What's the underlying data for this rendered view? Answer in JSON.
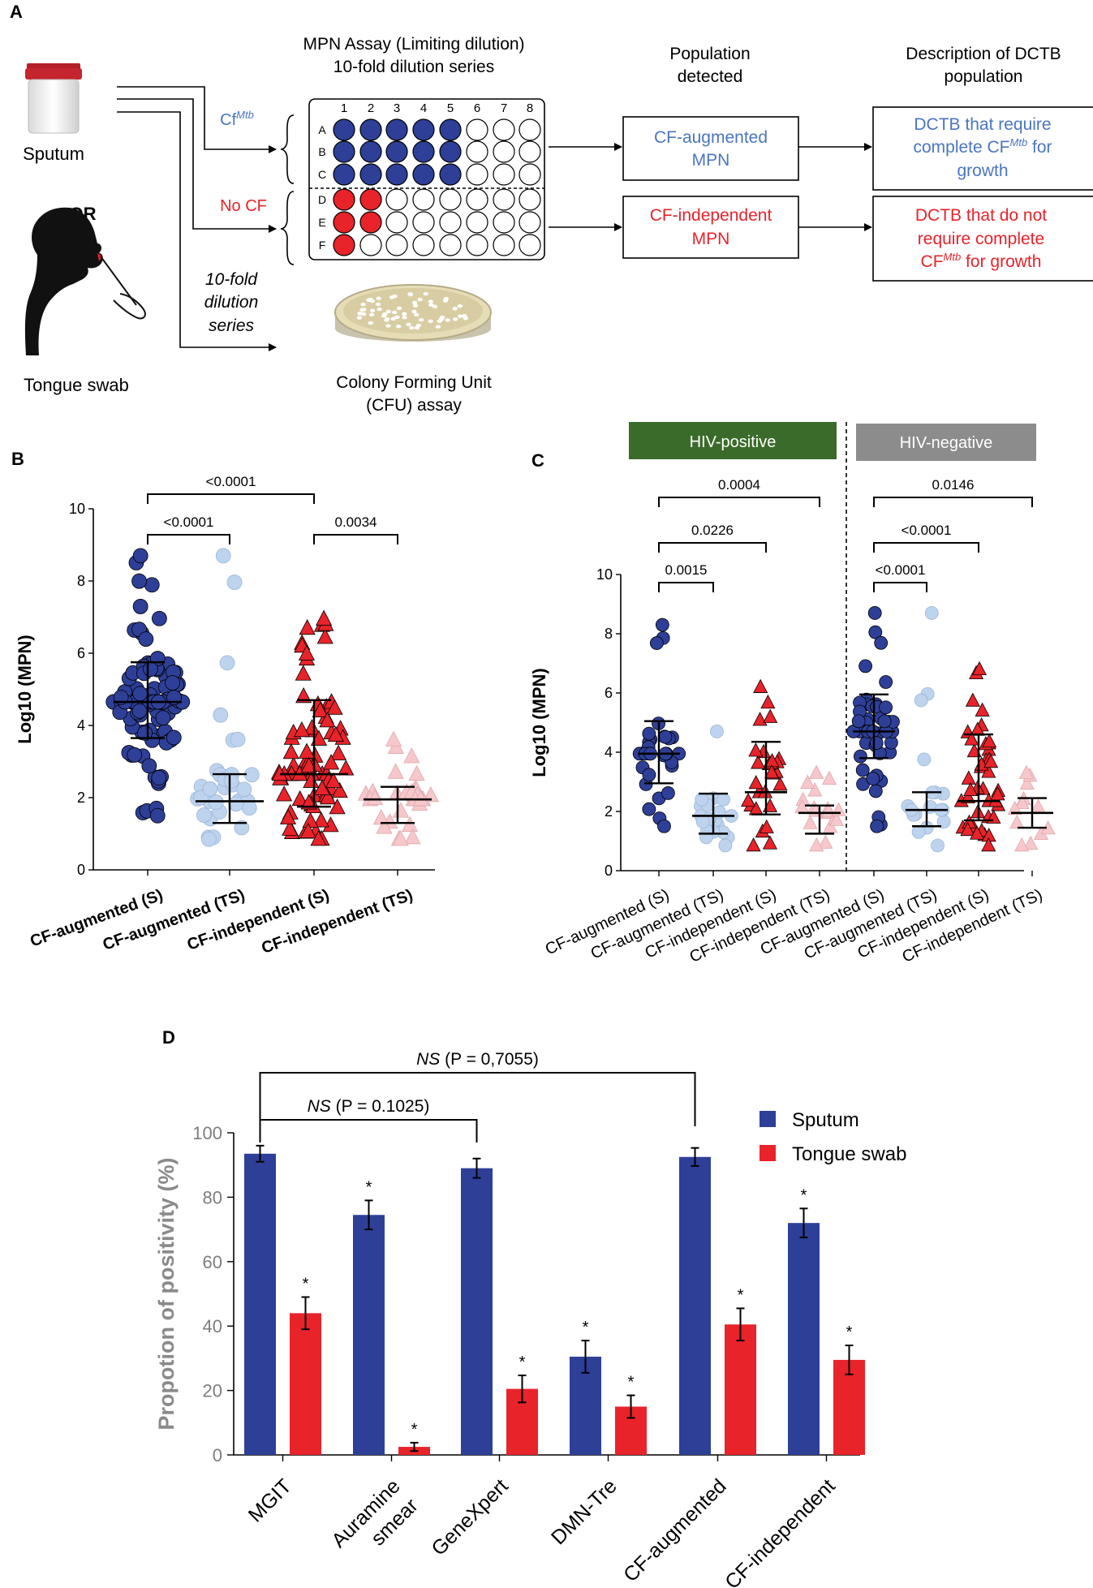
{
  "panels": {
    "a": "A",
    "b": "B",
    "c": "C",
    "d": "D"
  },
  "colors": {
    "blue": "#2E3F98",
    "light_blue": "#BDD3EE",
    "red": "#E8232A",
    "light_red": "#F6C8CB",
    "green": "#3B6B2A",
    "gray": "#8C8C8C",
    "text_blue": "#4A76C0",
    "text_red": "#E8232A"
  },
  "panel_a": {
    "sputum_label": "Sputum",
    "or_label": "OR",
    "tongue_label": "Tongue swab",
    "mpn_title_1": "MPN Assay (Limiting dilution)",
    "mpn_title_2": "10-fold dilution series",
    "pop_title_1": "Population",
    "pop_title_2": "detected",
    "desc_title_1": "Description of DCTB",
    "desc_title_2": "population",
    "cf_label": "Cf",
    "cf_sup": "Mtb",
    "nocf_label": "No CF",
    "dilution_1": "10-fold",
    "dilution_2": "dilution",
    "dilution_3": "series",
    "col_labels": [
      "1",
      "2",
      "3",
      "4",
      "5",
      "6",
      "7",
      "8"
    ],
    "row_labels": [
      "A",
      "B",
      "C",
      "D",
      "E",
      "F"
    ],
    "pos_counts": [
      5,
      5,
      5,
      2,
      2,
      1
    ],
    "box_aug_1": "CF-augmented",
    "box_aug_2": "MPN",
    "box_ind_1": "CF-independent",
    "box_ind_2": "MPN",
    "desc_aug_1": "DCTB that require",
    "desc_aug_2a": "complete CF",
    "desc_aug_2sup": "Mtb",
    "desc_aug_2b": " for",
    "desc_aug_3": "growth",
    "desc_ind_1": "DCTB that do not",
    "desc_ind_2": "require complete",
    "desc_ind_3a": "CF",
    "desc_ind_3sup": "Mtb",
    "desc_ind_3b": " for growth",
    "cfu_1": "Colony Forming Unit",
    "cfu_2": "(CFU) assay"
  },
  "chart_data": [
    {
      "panel": "B",
      "type": "scatter",
      "ylabel": "Log10 (MPN)",
      "ylim": [
        0,
        10
      ],
      "yticks": [
        "0",
        "2",
        "4",
        "6",
        "8",
        "10"
      ],
      "categories": [
        "CF-augmented (S)",
        "CF-augmented (TS)",
        "CF-independent (S)",
        "CF-independent (TS)"
      ],
      "series": [
        {
          "name": "CF-augmented (S)",
          "marker": "circle",
          "median": 4.65,
          "q1": 3.65,
          "q3": 5.75,
          "min": 1.5,
          "max": 8.7,
          "n": 90
        },
        {
          "name": "CF-augmented (TS)",
          "marker": "circle",
          "median": 1.9,
          "q1": 1.3,
          "q3": 2.65,
          "min": 0.85,
          "max": 8.7,
          "n": 30
        },
        {
          "name": "CF-independent (S)",
          "marker": "triangle",
          "median": 2.65,
          "q1": 1.75,
          "q3": 4.7,
          "min": 0.85,
          "max": 6.95,
          "n": 80
        },
        {
          "name": "CF-independent (TS)",
          "marker": "triangle",
          "median": 1.95,
          "q1": 1.3,
          "q3": 2.3,
          "min": 0.85,
          "max": 3.6,
          "n": 32
        }
      ],
      "comparisons": [
        {
          "from": 0,
          "to": 2,
          "p": "<0.0001"
        },
        {
          "from": 0,
          "to": 1,
          "p": "<0.0001"
        },
        {
          "from": 2,
          "to": 3,
          "p": "0.0034"
        }
      ]
    },
    {
      "panel": "C",
      "type": "scatter",
      "ylabel": "Log10 (MPN)",
      "ylim": [
        0,
        10
      ],
      "yticks": [
        "0",
        "2",
        "4",
        "6",
        "8",
        "10"
      ],
      "groups": [
        "HIV-positive",
        "HIV-negative"
      ],
      "categories": [
        "CF-augmented (S)",
        "CF-augmented (TS)",
        "CF-independent (S)",
        "CF-independent (TS)",
        "CF-augmented (S)",
        "CF-augmented (TS)",
        "CF-independent (S)",
        "CF-independent (TS)"
      ],
      "series": [
        {
          "name": "HIV-positive CF-augmented (S)",
          "marker": "circle",
          "median": 3.95,
          "q1": 2.95,
          "q3": 5.05,
          "min": 1.5,
          "max": 8.3,
          "n": 30
        },
        {
          "name": "HIV-positive CF-augmented (TS)",
          "marker": "circle",
          "median": 1.85,
          "q1": 1.25,
          "q3": 2.6,
          "min": 0.85,
          "max": 4.7,
          "n": 18
        },
        {
          "name": "HIV-positive CF-independent (S)",
          "marker": "triangle",
          "median": 2.65,
          "q1": 1.9,
          "q3": 4.35,
          "min": 0.85,
          "max": 6.2,
          "n": 25
        },
        {
          "name": "HIV-positive CF-independent (TS)",
          "marker": "triangle",
          "median": 1.95,
          "q1": 1.25,
          "q3": 2.2,
          "min": 0.85,
          "max": 3.3,
          "n": 16
        },
        {
          "name": "HIV-negative CF-augmented (S)",
          "marker": "circle",
          "median": 4.7,
          "q1": 3.8,
          "q3": 5.95,
          "min": 1.5,
          "max": 8.7,
          "n": 45
        },
        {
          "name": "HIV-negative CF-augmented (TS)",
          "marker": "circle",
          "median": 2.05,
          "q1": 1.5,
          "q3": 2.65,
          "min": 0.85,
          "max": 8.7,
          "n": 16
        },
        {
          "name": "HIV-negative CF-independent (S)",
          "marker": "triangle",
          "median": 2.35,
          "q1": 1.7,
          "q3": 4.6,
          "min": 0.85,
          "max": 6.8,
          "n": 40
        },
        {
          "name": "HIV-negative CF-independent (TS)",
          "marker": "triangle",
          "median": 1.95,
          "q1": 1.45,
          "q3": 2.45,
          "min": 0.85,
          "max": 3.3,
          "n": 10
        }
      ],
      "comparisons": [
        {
          "from": 0,
          "to": 3,
          "p": "0.0004"
        },
        {
          "from": 0,
          "to": 2,
          "p": "0.0226"
        },
        {
          "from": 0,
          "to": 1,
          "p": "0.0015"
        },
        {
          "from": 4,
          "to": 7,
          "p": "0.0146"
        },
        {
          "from": 4,
          "to": 6,
          "p": "<0.0001"
        },
        {
          "from": 4,
          "to": 5,
          "p": "<0.0001"
        }
      ]
    },
    {
      "panel": "D",
      "type": "bar",
      "ylabel": "Propotion of positivity (%)",
      "ylim": [
        0,
        100
      ],
      "yticks": [
        "0",
        "20",
        "40",
        "60",
        "80",
        "100"
      ],
      "legend": [
        "Sputum",
        "Tongue swab"
      ],
      "legend_position": "top-right",
      "categories": [
        "MGIT",
        "Auramine smear",
        "GeneXpert",
        "DMN-Tre",
        "CF-augmented",
        "CF-independent"
      ],
      "category_lines": [
        [
          "MGIT"
        ],
        [
          "Auramine",
          "smear"
        ],
        [
          "GeneXpert"
        ],
        [
          "DMN-Tre"
        ],
        [
          "CF-augmented"
        ],
        [
          "CF-independent"
        ]
      ],
      "series": [
        {
          "name": "Sputum",
          "values": [
            93.5,
            74.5,
            89,
            30.5,
            92.5,
            72
          ],
          "errors": [
            2.5,
            4.5,
            3,
            5,
            2.8,
            4.5
          ],
          "star": [
            false,
            true,
            false,
            true,
            false,
            true
          ]
        },
        {
          "name": "Tongue swab",
          "values": [
            44,
            2.5,
            20.5,
            15,
            40.5,
            29.5
          ],
          "errors": [
            5,
            1.3,
            4.2,
            3.5,
            5,
            4.5
          ],
          "star": [
            true,
            true,
            true,
            true,
            true,
            true
          ]
        }
      ],
      "star_label": "*",
      "comparisons": [
        {
          "from": "MGIT",
          "to": "CF-augmented",
          "ns": "NS",
          "p": " (P = 0,7055)"
        },
        {
          "from": "MGIT",
          "to": "GeneXpert",
          "ns": "NS",
          "p": " (P = 0.1025)"
        }
      ]
    }
  ]
}
